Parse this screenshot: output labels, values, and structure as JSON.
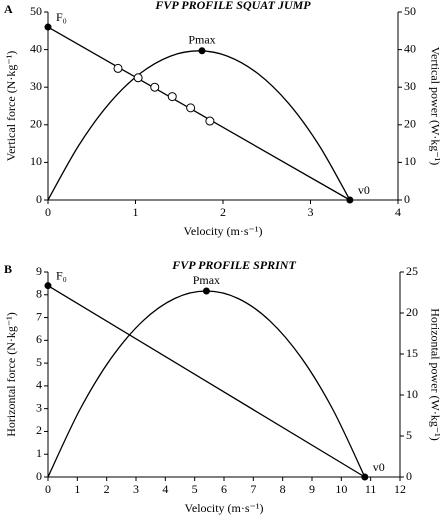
{
  "chart_data": [
    {
      "type": "line",
      "panel_label": "A",
      "title": "FVP PROFILE SQUAT JUMP",
      "x_label": "Velocity (m·s⁻¹)",
      "y_label": "Vertical force (N·kg⁻¹)",
      "y2_label": "Vertical power (W·kg⁻¹)",
      "xlim": [
        0,
        4
      ],
      "xticks": [
        0,
        1,
        2,
        3,
        4
      ],
      "ylim": [
        0,
        50
      ],
      "yticks": [
        0,
        10,
        20,
        30,
        40,
        50
      ],
      "y2lim": [
        0,
        50
      ],
      "y2ticks": [
        0,
        10,
        20,
        30,
        40,
        50
      ],
      "series": [
        {
          "color": "#000000",
          "axis": "y",
          "marker": "filled",
          "marker_at": "ends",
          "x": [
            0,
            3.45
          ],
          "values": [
            46,
            0
          ],
          "point_labels": [
            "F₀",
            "v0"
          ]
        },
        {
          "color": "#000000",
          "axis": "y2",
          "marker": "none",
          "smooth": true,
          "x": [
            0,
            0.35,
            0.7,
            1.05,
            1.4,
            1.725,
            2.05,
            2.4,
            2.75,
            3.1,
            3.45
          ],
          "values": [
            0,
            14.47,
            25.67,
            33.6,
            38.27,
            39.68,
            38.27,
            33.6,
            25.67,
            14.47,
            0
          ]
        },
        {
          "color": "#000000",
          "axis": "y",
          "marker": "open",
          "marker_at": "all",
          "line": false,
          "x": [
            0.8,
            1.03,
            1.22,
            1.42,
            1.63,
            1.85
          ],
          "values": [
            35,
            32.5,
            30,
            27.5,
            24.5,
            21
          ]
        },
        {
          "color": "#000000",
          "axis": "y2",
          "marker": "filled",
          "marker_at": "all",
          "line": false,
          "x": [
            1.76
          ],
          "values": [
            39.68
          ],
          "point_labels": [
            "Pmax"
          ]
        }
      ]
    },
    {
      "type": "line",
      "panel_label": "B",
      "title": "FVP PROFILE SPRINT",
      "x_label": "Velocity (m·s⁻¹)",
      "y_label": "Horizontal force (N·kg⁻¹)",
      "y2_label": "Horizontal power (W·kg⁻¹)",
      "xlim": [
        0,
        12
      ],
      "xticks": [
        0,
        1,
        2,
        3,
        4,
        5,
        6,
        7,
        8,
        9,
        10,
        11,
        12
      ],
      "ylim": [
        0,
        9
      ],
      "yticks": [
        0,
        1,
        2,
        3,
        4,
        5,
        6,
        7,
        8,
        9
      ],
      "y2lim": [
        0,
        25
      ],
      "y2ticks": [
        0,
        5,
        10,
        15,
        20,
        25
      ],
      "series": [
        {
          "color": "#000000",
          "axis": "y",
          "marker": "filled",
          "marker_at": "ends",
          "x": [
            0,
            10.8
          ],
          "values": [
            8.4,
            0
          ],
          "point_labels": [
            "F₀",
            "v0"
          ]
        },
        {
          "color": "#000000",
          "axis": "y2",
          "marker": "none",
          "smooth": true,
          "x": [
            0,
            1.08,
            2.16,
            3.24,
            4.32,
            5.4,
            6.48,
            7.56,
            8.64,
            9.72,
            10.8
          ],
          "values": [
            0,
            8.17,
            14.52,
            19.05,
            21.77,
            22.68,
            21.77,
            19.05,
            14.52,
            8.17,
            0
          ]
        },
        {
          "color": "#000000",
          "axis": "y2",
          "marker": "filled",
          "marker_at": "all",
          "line": false,
          "x": [
            5.4
          ],
          "values": [
            22.68
          ],
          "point_labels": [
            "Pmax"
          ]
        }
      ]
    }
  ]
}
